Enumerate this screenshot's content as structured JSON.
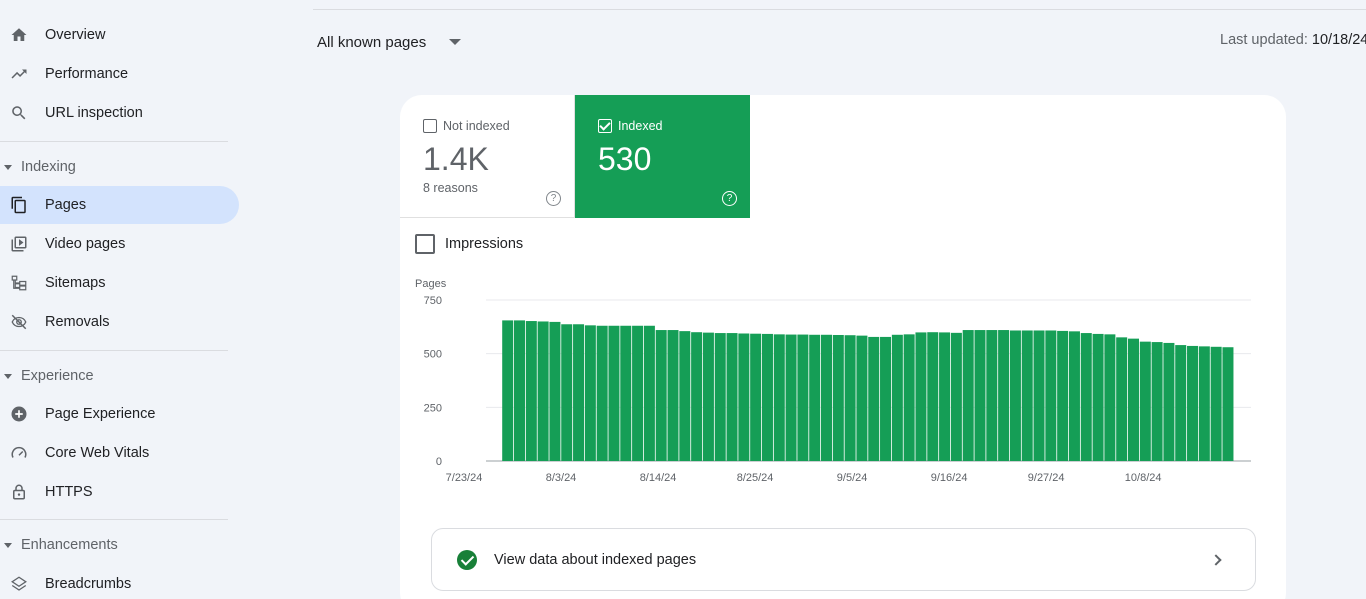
{
  "sidebar": {
    "items": [
      {
        "label": "Overview",
        "icon": "home-icon"
      },
      {
        "label": "Performance",
        "icon": "trending-up-icon"
      },
      {
        "label": "URL inspection",
        "icon": "search-icon"
      }
    ],
    "sections": [
      {
        "title": "Indexing",
        "items": [
          {
            "label": "Pages",
            "icon": "pages-icon",
            "active": true
          },
          {
            "label": "Video pages",
            "icon": "video-pages-icon"
          },
          {
            "label": "Sitemaps",
            "icon": "sitemaps-icon"
          },
          {
            "label": "Removals",
            "icon": "eye-off-icon"
          }
        ]
      },
      {
        "title": "Experience",
        "items": [
          {
            "label": "Page Experience",
            "icon": "add-circle-icon"
          },
          {
            "label": "Core Web Vitals",
            "icon": "speed-gauge-icon"
          },
          {
            "label": "HTTPS",
            "icon": "lock-icon"
          }
        ]
      },
      {
        "title": "Enhancements",
        "items": [
          {
            "label": "Breadcrumbs",
            "icon": "layers-icon"
          }
        ]
      }
    ]
  },
  "header": {
    "filter_label": "All known pages",
    "last_updated_label": "Last updated:",
    "last_updated_date": "10/18/24"
  },
  "metrics": {
    "not_indexed": {
      "label": "Not indexed",
      "value": "1.4K",
      "sub": "8 reasons",
      "checked": false
    },
    "indexed": {
      "label": "Indexed",
      "value": "530",
      "checked": true
    }
  },
  "impressions_label": "Impressions",
  "view_data_label": "View data about indexed pages",
  "colors": {
    "indexed_green": "#159e56",
    "active_nav": "#d3e3fd",
    "check_green": "#188038"
  },
  "chart_data": {
    "type": "bar",
    "ylabel": "Pages",
    "ylim": [
      0,
      750
    ],
    "yticks": [
      0,
      250,
      500,
      750
    ],
    "x_tick_labels": [
      "7/23/24",
      "8/3/24",
      "8/14/24",
      "8/25/24",
      "9/5/24",
      "9/16/24",
      "9/27/24",
      "10/8/24"
    ],
    "first_date": "7/28/24",
    "last_date": "10/18/24",
    "values": [
      655,
      655,
      652,
      650,
      648,
      637,
      637,
      632,
      630,
      630,
      630,
      630,
      630,
      610,
      610,
      605,
      600,
      598,
      596,
      596,
      594,
      593,
      592,
      590,
      589,
      589,
      588,
      588,
      587,
      586,
      584,
      578,
      578,
      588,
      590,
      599,
      600,
      599,
      597,
      610,
      610,
      610,
      610,
      608,
      608,
      608,
      608,
      606,
      604,
      596,
      592,
      590,
      576,
      570,
      556,
      554,
      550,
      540,
      536,
      534,
      532,
      530
    ]
  }
}
